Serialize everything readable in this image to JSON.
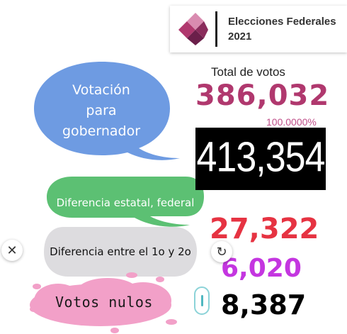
{
  "header": {
    "title": "Elecciones Federales 2021",
    "logo_icon": "ine-diamond-logo-icon",
    "logo_colors": [
      "#6b1f4a",
      "#b0386e",
      "#d98bb0"
    ]
  },
  "bubbles": {
    "governor": {
      "lines": [
        "Votación",
        "para",
        "gobernador"
      ],
      "color": "#6e9be2"
    },
    "state_federal_difference": {
      "label": "Diferencia estatal, federal",
      "color": "#5cc073"
    },
    "first_second_difference": {
      "label": "Diferencia entre el 1o y 2o",
      "color": "#dddcdf"
    },
    "null_votes": {
      "label": "Votos nulos",
      "color": "#f2a0c8"
    }
  },
  "totals": {
    "label": "Total de votos",
    "governor_total": "386,032",
    "percent": "100.0000%",
    "federal_total": "413,354",
    "state_federal_difference": "27,322",
    "first_second_difference": "6,020",
    "null_votes": "8,387"
  },
  "controls": {
    "close_icon": "close-icon",
    "close_glyph": "✕",
    "refresh_icon": "refresh-icon",
    "refresh_glyph": "↻"
  }
}
